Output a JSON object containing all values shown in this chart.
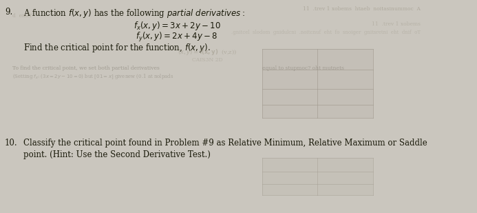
{
  "background_color": "#cac6be",
  "main_text_color": "#1a1a0a",
  "faded_text_color": "#9a9484",
  "faded_text_color2": "#7a7468",
  "q9_number": "9.",
  "q9_line1": "A function $f(x, y)$ has the following $\\it{partial\\ derivatives:}$",
  "q9_fx": "$f_x(x, y) = 3x + 2y - 10$",
  "q9_fy": "$f_y(x, y) = 2x + 4y - 8$",
  "q9_find": "Find the critical point for the function, $f(x, y)$.",
  "q10_number": "10.",
  "q10_line1": "Classify the critical point found in Problem #9 as Relative Minimum, Relative Maximum or Saddle",
  "q10_line2": "point. (Hint: Use the Second Derivative Test.)",
  "grid_color": "#a0998e",
  "grid_face": "#c0bbb2"
}
